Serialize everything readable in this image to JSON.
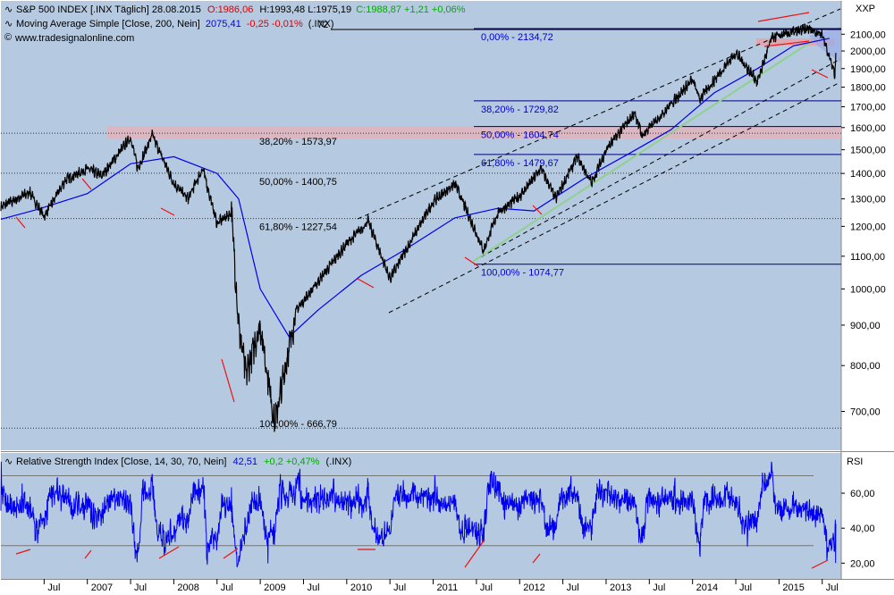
{
  "header": {
    "symbol": "S&P 500 INDEX [.INX  Täglich] 28.08.2015",
    "open": "O:1986,06",
    "hl": "H:1993,48 L:1975,19",
    "close_chg": "C:1988,87 +1,21 +0,06%",
    "ma_label": "Moving Average Simple [Close, 200, Nein]",
    "ma_value": "2075,41",
    "ma_chg": "-0,25 -0,01%",
    "ma_sym": "(.INX)",
    "ma_tail": "72",
    "credit": "www.tradesignalonline.com",
    "corner_label": "XXP"
  },
  "colors": {
    "panel_bg": "#b5c9e0",
    "price": "#000000",
    "ma": "#0000ee",
    "rsi": "#0000ee",
    "divergence": "#ee1111",
    "resistance_band": "#e8b0b8",
    "fib_line": "#000080",
    "green_trend": "#90d090",
    "up_text": "#00aa00",
    "down_text": "#dd0000"
  },
  "chart_data": [
    {
      "type": "line",
      "title": "S&P 500 INDEX [.INX  Täglich] 28.08.2015",
      "y_scale": "log",
      "ylim": [
        630,
        2290
      ],
      "y_ticks": [
        "2100,00",
        "2000,00",
        "1900,00",
        "1800,00",
        "1700,00",
        "1600,00",
        "1500,00",
        "1400,00",
        "1300,00",
        "1200,00",
        "1100,00",
        "1000,00",
        "900,00",
        "800,00",
        "700,00"
      ],
      "x_ticks": [
        "Jul",
        "2007",
        "Jul",
        "2008",
        "Jul",
        "2009",
        "Jul",
        "2010",
        "Jul",
        "2011",
        "Jul",
        "2012",
        "Jul",
        "2013",
        "Jul",
        "2014",
        "Jul",
        "2015",
        "Jul"
      ],
      "series": [
        {
          "name": "S&P 500 INDEX",
          "x": [
            "2006-01",
            "2006-05",
            "2006-07",
            "2006-10",
            "2007-01",
            "2007-03",
            "2007-07",
            "2007-08",
            "2007-10",
            "2008-01",
            "2008-03",
            "2008-05",
            "2008-07",
            "2008-09",
            "2008-10",
            "2008-11",
            "2009-01",
            "2009-03",
            "2009-06",
            "2010-01",
            "2010-04",
            "2010-07",
            "2011-01",
            "2011-04",
            "2011-08",
            "2011-10",
            "2012-01",
            "2012-04",
            "2012-06",
            "2012-09",
            "2012-11",
            "2013-01",
            "2013-05",
            "2013-06",
            "2014-01",
            "2014-02",
            "2014-07",
            "2014-10",
            "2014-12",
            "2015-03",
            "2015-05",
            "2015-07",
            "2015-08-24",
            "2015-08-28"
          ],
          "values": [
            1270,
            1325,
            1235,
            1375,
            1420,
            1390,
            1555,
            1420,
            1565,
            1360,
            1300,
            1420,
            1210,
            1250,
            900,
            780,
            900,
            677,
            940,
            1140,
            1217,
            1030,
            1290,
            1360,
            1120,
            1250,
            1310,
            1420,
            1300,
            1470,
            1360,
            1500,
            1670,
            1560,
            1840,
            1740,
            1990,
            1830,
            2080,
            2110,
            2135,
            2100,
            1867,
            1989
          ]
        },
        {
          "name": "Moving Average Simple [Close, 200, Nein]",
          "x": [
            "2006-01",
            "2006-06",
            "2007-01",
            "2007-07",
            "2008-01",
            "2008-07",
            "2008-10",
            "2009-01",
            "2009-05",
            "2009-09",
            "2010-03",
            "2010-09",
            "2011-04",
            "2011-10",
            "2012-03",
            "2012-10",
            "2013-04",
            "2013-10",
            "2014-04",
            "2014-10",
            "2015-03",
            "2015-08"
          ],
          "values": [
            1225,
            1260,
            1320,
            1440,
            1470,
            1400,
            1300,
            1000,
            870,
            940,
            1040,
            1120,
            1230,
            1265,
            1255,
            1380,
            1480,
            1590,
            1770,
            1900,
            2030,
            2075
          ]
        }
      ],
      "fibonacci": [
        {
          "label": "38,20% - 1573,97",
          "value": 1573.97
        },
        {
          "label": "50,00% - 1400,75",
          "value": 1400.75
        },
        {
          "label": "61,80% - 1227,54",
          "value": 1227.54
        },
        {
          "label": "100,00% - 666,79",
          "value": 666.79
        },
        {
          "label": "0,00% - 2134,72",
          "value": 2134.72
        },
        {
          "label": "38,20% - 1729,82",
          "value": 1729.82
        },
        {
          "label": "50,00% - 1604,74",
          "value": 1604.74
        },
        {
          "label": "61,80% - 1479,67",
          "value": 1479.67
        },
        {
          "label": "100,00% - 1074,77",
          "value": 1074.77
        }
      ]
    },
    {
      "type": "line",
      "title": "Relative Strength Index [Close, 14, 30, 70, Nein]",
      "ylim": [
        12,
        82
      ],
      "y_ticks": [
        "60,00",
        "40,00",
        "20,00"
      ],
      "axis_label": "RSI",
      "levels": [
        30,
        70
      ],
      "current": "42,51",
      "change": "+0,2 +0,47%",
      "symbol": "(.INX)"
    }
  ]
}
